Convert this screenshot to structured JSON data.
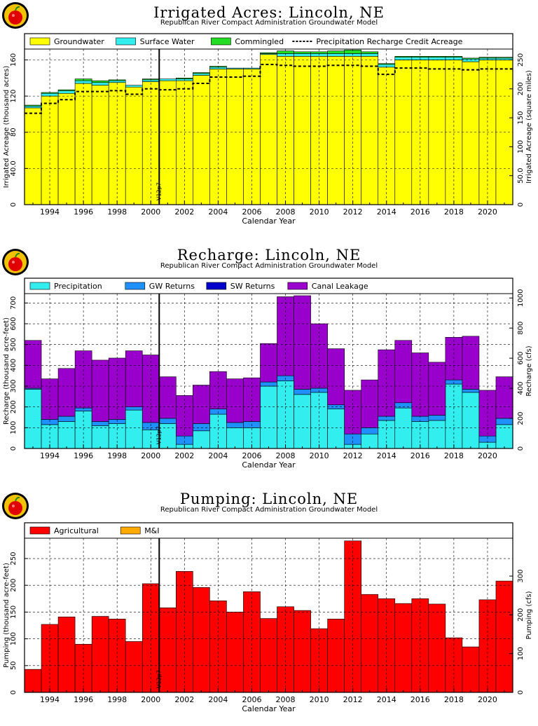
{
  "chart_data": [
    {
      "type": "area",
      "title": "Irrigated Acres: Lincoln, NE",
      "subtitle": "Republican River Compact Administration Groundwater Model",
      "xlabel": "Calendar Year",
      "ylabel": "Irrigated Acreage (thousand acres)",
      "ylabel_right": "Irrigated Acreage (square miles)",
      "ylim": [
        0,
        172
      ],
      "yticks": [
        "0",
        "40.0",
        "80",
        "120",
        "160"
      ],
      "y2lim": [
        0,
        268.75
      ],
      "y2ticks": [
        "0",
        "50.0",
        "100",
        "150",
        "200",
        "250"
      ],
      "xticks": [
        "1994",
        "1996",
        "1998",
        "2000",
        "2002",
        "2004",
        "2006",
        "2008",
        "2010",
        "2012",
        "2014",
        "2016",
        "2018",
        "2020"
      ],
      "x": [
        1993,
        1994,
        1995,
        1996,
        1997,
        1998,
        1999,
        2000,
        2001,
        2002,
        2003,
        2004,
        2005,
        2006,
        2007,
        2008,
        2009,
        2010,
        2011,
        2012,
        2013,
        2014,
        2015,
        2016,
        2017,
        2018,
        2019,
        2020,
        2021
      ],
      "series": [
        {
          "name": "Groundwater",
          "color": "#ffff00",
          "values": [
            107,
            120,
            123,
            134,
            132,
            135,
            130,
            136,
            137,
            137,
            143,
            150,
            150,
            150,
            166,
            164,
            164,
            164,
            164,
            164,
            164,
            152,
            160,
            160,
            160,
            160,
            158,
            160,
            160
          ]
        },
        {
          "name": "Surface Water",
          "color": "#33eeee",
          "values": [
            2,
            3,
            3,
            3,
            3,
            2,
            2,
            2,
            2,
            2,
            2,
            2,
            1,
            1,
            1,
            3,
            3,
            3,
            3,
            3,
            3,
            3,
            3,
            3,
            3,
            3,
            3,
            2,
            2
          ]
        },
        {
          "name": "Commingled",
          "color": "#22dd22",
          "values": [
            1,
            1,
            1,
            2,
            2,
            1,
            0,
            1,
            0,
            1,
            1,
            1,
            0,
            0,
            1,
            3,
            2,
            2,
            3,
            4,
            2,
            1,
            1,
            1,
            1,
            1,
            1,
            1,
            1
          ]
        },
        {
          "name": "Precipitation Recharge Credit Acreage",
          "style": "dashed",
          "values": [
            101,
            112,
            116,
            125,
            125,
            126,
            122,
            128,
            127,
            128,
            134,
            141,
            141,
            142,
            155,
            154,
            153,
            153,
            154,
            154,
            153,
            144,
            151,
            151,
            150,
            150,
            149,
            150,
            150
          ]
        }
      ],
      "annotation": "V12p7",
      "annotation_x": 2000.5
    },
    {
      "type": "area",
      "title": "Recharge: Lincoln, NE",
      "subtitle": "Republican River Compact Administration Groundwater Model",
      "xlabel": "Calendar Year",
      "ylabel": "Recharge (thousand acre-feet)",
      "ylabel_right": "Recharge (cfs)",
      "ylim": [
        0,
        745
      ],
      "yticks": [
        "0",
        "100",
        "200",
        "300",
        "400",
        "500",
        "600",
        "700"
      ],
      "y2lim": [
        0,
        1029
      ],
      "y2ticks": [
        "0",
        "200",
        "400",
        "600",
        "800",
        "1000"
      ],
      "xticks": [
        "1994",
        "1996",
        "1998",
        "2000",
        "2002",
        "2004",
        "2006",
        "2008",
        "2010",
        "2012",
        "2014",
        "2016",
        "2018",
        "2020"
      ],
      "x": [
        1993,
        1994,
        1995,
        1996,
        1997,
        1998,
        1999,
        2000,
        2001,
        2002,
        2003,
        2004,
        2005,
        2006,
        2007,
        2008,
        2009,
        2010,
        2011,
        2012,
        2013,
        2014,
        2015,
        2016,
        2017,
        2018,
        2019,
        2020,
        2021
      ],
      "series": [
        {
          "name": "Precipitation",
          "color": "#33eeee",
          "values": [
            285,
            115,
            130,
            180,
            110,
            120,
            185,
            90,
            120,
            20,
            85,
            165,
            100,
            100,
            300,
            325,
            260,
            270,
            190,
            20,
            70,
            135,
            195,
            130,
            135,
            310,
            270,
            30,
            115
          ]
        },
        {
          "name": "GW Returns",
          "color": "#1e90ff",
          "values": [
            5,
            25,
            25,
            15,
            20,
            20,
            15,
            35,
            25,
            40,
            35,
            25,
            25,
            30,
            20,
            25,
            25,
            20,
            20,
            50,
            30,
            20,
            25,
            25,
            25,
            20,
            15,
            30,
            30
          ]
        },
        {
          "name": "SW Returns",
          "color": "#0000cc",
          "values": [
            0,
            0,
            0,
            0,
            0,
            0,
            0,
            0,
            0,
            0,
            0,
            0,
            0,
            0,
            0,
            0,
            0,
            0,
            0,
            0,
            0,
            0,
            0,
            0,
            0,
            0,
            0,
            0,
            0
          ]
        },
        {
          "name": "Canal Leakage",
          "color": "#9900cc",
          "values": [
            230,
            195,
            230,
            275,
            295,
            295,
            270,
            325,
            200,
            195,
            185,
            180,
            210,
            210,
            185,
            380,
            450,
            310,
            270,
            210,
            230,
            320,
            300,
            305,
            255,
            205,
            255,
            220,
            200
          ]
        }
      ],
      "annotation": "V12p7",
      "annotation_x": 2000.5
    },
    {
      "type": "area",
      "title": "Pumping: Lincoln, NE",
      "subtitle": "Republican River Compact Administration Groundwater Model",
      "xlabel": "Calendar Year",
      "ylabel": "Pumping (thousand acre-feet)",
      "ylabel_right": "Pumping (cfs)",
      "ylim": [
        0,
        288
      ],
      "yticks": [
        "0",
        "50",
        "100",
        "150",
        "200",
        "250"
      ],
      "y2lim": [
        0,
        397.7
      ],
      "y2ticks": [
        "0",
        "100",
        "200",
        "300"
      ],
      "xticks": [
        "1994",
        "1996",
        "1998",
        "2000",
        "2002",
        "2004",
        "2006",
        "2008",
        "2010",
        "2012",
        "2014",
        "2016",
        "2018",
        "2020"
      ],
      "x": [
        1993,
        1994,
        1995,
        1996,
        1997,
        1998,
        1999,
        2000,
        2001,
        2002,
        2003,
        2004,
        2005,
        2006,
        2007,
        2008,
        2009,
        2010,
        2011,
        2012,
        2013,
        2014,
        2015,
        2016,
        2017,
        2018,
        2019,
        2020,
        2021
      ],
      "series": [
        {
          "name": "Agricultural",
          "color": "#ff0000",
          "values": [
            43,
            127,
            141,
            90,
            142,
            137,
            95,
            203,
            158,
            226,
            196,
            171,
            150,
            188,
            138,
            160,
            153,
            119,
            137,
            283,
            183,
            175,
            166,
            175,
            165,
            102,
            85,
            173,
            208
          ]
        },
        {
          "name": "M&I",
          "color": "#ffaa00",
          "values": [
            0,
            0,
            0,
            0,
            0,
            0,
            0,
            0,
            0,
            0,
            0,
            0,
            0,
            0,
            0,
            0,
            0,
            0,
            0,
            0,
            0,
            0,
            0,
            0,
            0,
            0,
            0,
            0,
            0
          ]
        }
      ],
      "annotation": "V12p7",
      "annotation_x": 2000.5
    }
  ]
}
